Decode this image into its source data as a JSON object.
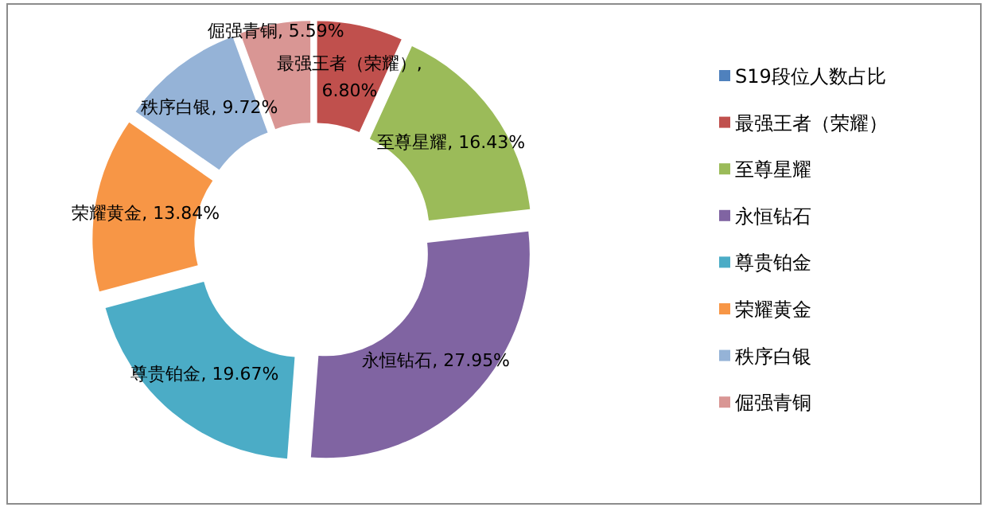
{
  "chart_data": {
    "type": "donut",
    "categories": [
      "S19段位人数占比",
      "最强王者（荣耀）",
      "至尊星耀",
      "永恒钻石",
      "尊贵铂金",
      "荣耀黄金",
      "秩序白银",
      "倔强青铜"
    ],
    "values": [
      0,
      6.8,
      16.43,
      27.95,
      19.67,
      13.84,
      9.72,
      5.59
    ],
    "colors": [
      "#4f81bd",
      "#c0504d",
      "#9bbb59",
      "#8064a2",
      "#4bacc6",
      "#f79646",
      "#95b3d7",
      "#d99694"
    ],
    "value_labels": [
      null,
      "最强王者（荣耀）, 6.80%",
      "至尊星耀, 16.43%",
      "永恒钻石, 27.95%",
      "尊贵铂金, 19.67%",
      "荣耀黄金, 13.84%",
      "秩序白银, 9.72%",
      "倔强青铜, 5.59%"
    ],
    "legend": "right"
  }
}
